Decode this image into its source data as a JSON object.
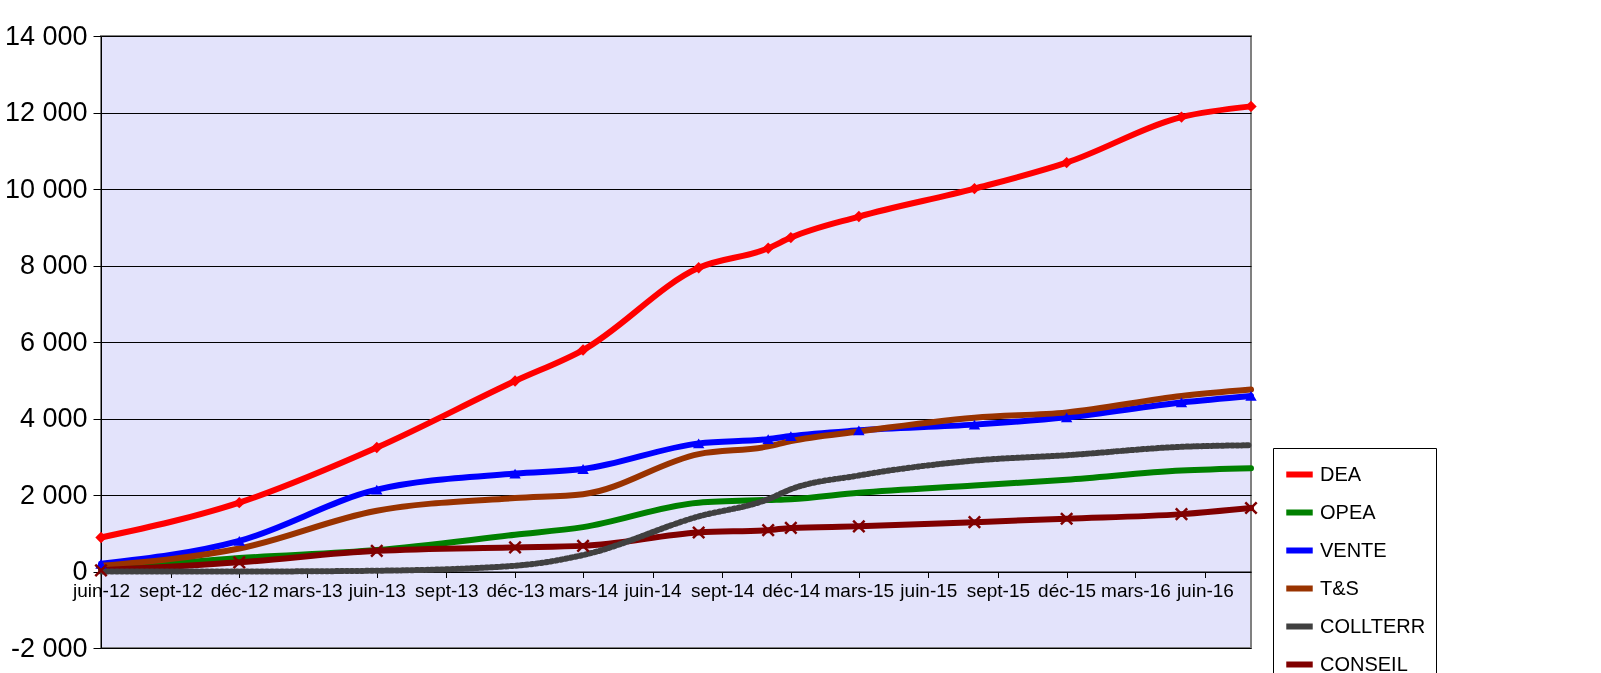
{
  "chart_data": {
    "type": "line",
    "x": [
      "2012-06",
      "2012-12",
      "2013-06",
      "2013-12",
      "2014-03",
      "2014-08",
      "2014-11",
      "2014-12",
      "2015-03",
      "2015-08",
      "2015-12",
      "2016-05",
      "2016-08"
    ],
    "series": [
      {
        "name": "DEA",
        "color": "#ff0000",
        "marker": "diamond",
        "values": [
          890,
          1800,
          3240,
          4980,
          5790,
          7940,
          8450,
          8730,
          9280,
          10010,
          10690,
          11880,
          12160
        ]
      },
      {
        "name": "OPEA",
        "color": "#008000",
        "values": [
          50,
          350,
          560,
          960,
          1160,
          1800,
          1870,
          1890,
          2060,
          2250,
          2400,
          2640,
          2700
        ]
      },
      {
        "name": "VENTE",
        "color": "#0000ff",
        "marker": "triangle",
        "values": [
          200,
          800,
          2140,
          2560,
          2680,
          3350,
          3460,
          3540,
          3690,
          3840,
          4030,
          4420,
          4590
        ]
      },
      {
        "name": "T&S",
        "color": "#993300",
        "values": [
          150,
          600,
          1590,
          1920,
          2020,
          3070,
          3270,
          3410,
          3660,
          4020,
          4160,
          4590,
          4760
        ]
      },
      {
        "name": "COLLTERR",
        "color": "#404040",
        "line_style": "dotted",
        "values": [
          0,
          0,
          20,
          150,
          430,
          1440,
          1890,
          2150,
          2510,
          2900,
          3040,
          3260,
          3300
        ]
      },
      {
        "name": "CONSEIL",
        "color": "#800000",
        "marker": "cross",
        "values": [
          30,
          240,
          540,
          630,
          670,
          1020,
          1080,
          1140,
          1180,
          1290,
          1380,
          1500,
          1660
        ]
      }
    ],
    "xlim": [
      "2012-06",
      "2016-08"
    ],
    "xticks": [
      {
        "value": "2012-06",
        "label": "juin-12"
      },
      {
        "value": "2012-09",
        "label": "sept-12"
      },
      {
        "value": "2012-12",
        "label": "déc-12"
      },
      {
        "value": "2013-03",
        "label": "mars-13"
      },
      {
        "value": "2013-06",
        "label": "juin-13"
      },
      {
        "value": "2013-09",
        "label": "sept-13"
      },
      {
        "value": "2013-12",
        "label": "déc-13"
      },
      {
        "value": "2014-03",
        "label": "mars-14"
      },
      {
        "value": "2014-06",
        "label": "juin-14"
      },
      {
        "value": "2014-09",
        "label": "sept-14"
      },
      {
        "value": "2014-12",
        "label": "déc-14"
      },
      {
        "value": "2015-03",
        "label": "mars-15"
      },
      {
        "value": "2015-06",
        "label": "juin-15"
      },
      {
        "value": "2015-09",
        "label": "sept-15"
      },
      {
        "value": "2015-12",
        "label": "déc-15"
      },
      {
        "value": "2016-03",
        "label": "mars-16"
      },
      {
        "value": "2016-06",
        "label": "juin-16"
      }
    ],
    "ylim": [
      -2000,
      14000
    ],
    "yticks": [
      {
        "value": -2000,
        "label": "-2 000"
      },
      {
        "value": 0,
        "label": "0"
      },
      {
        "value": 2000,
        "label": "2 000"
      },
      {
        "value": 4000,
        "label": "4 000"
      },
      {
        "value": 6000,
        "label": "6 000"
      },
      {
        "value": 8000,
        "label": "8 000"
      },
      {
        "value": 10000,
        "label": "10 000"
      },
      {
        "value": 12000,
        "label": "12 000"
      },
      {
        "value": 14000,
        "label": "14 000"
      }
    ],
    "grid": "y",
    "legend": "right"
  }
}
